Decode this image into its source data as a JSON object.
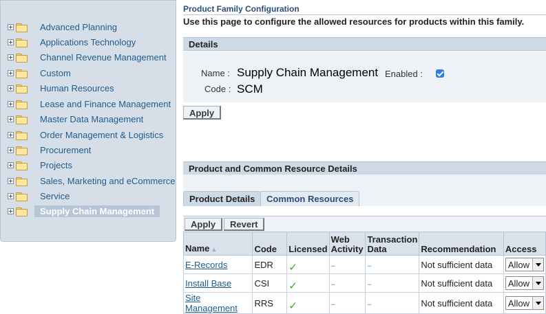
{
  "tree": {
    "items": [
      {
        "label": "Advanced Planning"
      },
      {
        "label": "Applications Technology"
      },
      {
        "label": "Channel Revenue Management"
      },
      {
        "label": "Custom"
      },
      {
        "label": "Human Resources"
      },
      {
        "label": "Lease and Finance Management"
      },
      {
        "label": "Master Data Management"
      },
      {
        "label": "Order Management & Logistics"
      },
      {
        "label": "Procurement"
      },
      {
        "label": "Projects"
      },
      {
        "label": "Sales, Marketing and eCommerce"
      },
      {
        "label": "Service"
      },
      {
        "label": "Supply Chain Management",
        "selected": true
      }
    ]
  },
  "page": {
    "title": "Product Family Configuration",
    "instruction": "Use this page to configure the allowed resources for products within this family."
  },
  "details": {
    "header": "Details",
    "name_label": "Name :",
    "name_value": "Supply Chain Management",
    "code_label": "Code :",
    "code_value": "SCM",
    "enabled_label": "Enabled :",
    "enabled": true,
    "apply_label": "Apply"
  },
  "resources": {
    "header": "Product and Common Resource Details",
    "tabs": [
      {
        "label": "Product Details",
        "active": true
      },
      {
        "label": "Common Resources",
        "active": false
      }
    ],
    "toolbar": {
      "apply_label": "Apply",
      "revert_label": "Revert"
    },
    "columns": {
      "name": "Name",
      "code": "Code",
      "licensed": "Licensed",
      "web_activity": "Web Activity",
      "transaction_data": "Transaction Data",
      "recommendation": "Recommendation",
      "access": "Access"
    },
    "rows": [
      {
        "name": "E-Records",
        "code": "EDR",
        "licensed": "✓",
        "web": "--",
        "txn": "--",
        "recommendation": "Not sufficient data",
        "access": "Allow"
      },
      {
        "name": "Install Base",
        "code": "CSI",
        "licensed": "✓",
        "web": "--",
        "txn": "--",
        "recommendation": "Not sufficient data",
        "access": "Allow"
      },
      {
        "name": "Site Management",
        "code": "RRS",
        "licensed": "✓",
        "web": "--",
        "txn": "--",
        "recommendation": "Not sufficient data",
        "access": "Allow"
      }
    ]
  }
}
